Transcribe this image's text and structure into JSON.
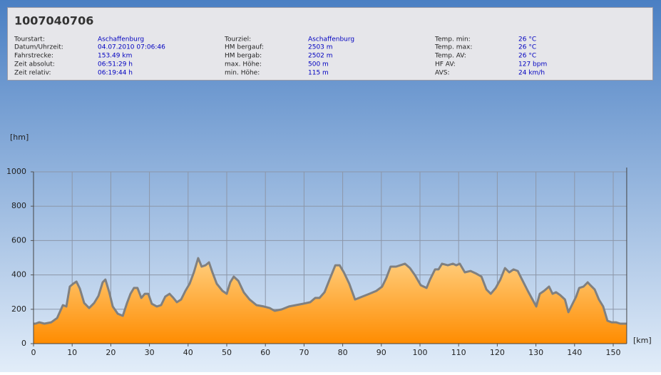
{
  "header": {
    "title": "1007040706",
    "fields": [
      [
        {
          "label": "Tourstart:",
          "value": "Aschaffenburg"
        },
        {
          "label": "Datum/Uhrzeit:",
          "value": "04.07.2010 07:06:46"
        },
        {
          "label": "Fahrstrecke:",
          "value": "153.49 km"
        },
        {
          "label": "Zeit absolut:",
          "value": "06:51:29 h"
        },
        {
          "label": "Zeit relativ:",
          "value": "06:19:44 h"
        }
      ],
      [
        {
          "label": "Tourziel:",
          "value": "Aschaffenburg"
        },
        {
          "label": "HM bergauf:",
          "value": "2503 m"
        },
        {
          "label": "HM bergab:",
          "value": "2502 m"
        },
        {
          "label": "max. Höhe:",
          "value": "500 m"
        },
        {
          "label": "min. Höhe:",
          "value": "115 m"
        }
      ],
      [
        {
          "label": "Temp. min:",
          "value": "26 °C"
        },
        {
          "label": "Temp. max:",
          "value": "26 °C"
        },
        {
          "label": "Temp. AV:",
          "value": "26 °C"
        },
        {
          "label": "HF AV:",
          "value": "127 bpm"
        },
        {
          "label": "AVS:",
          "value": "24 km/h"
        }
      ]
    ]
  },
  "chart_data": {
    "type": "area",
    "y_label": "[hm]",
    "x_label": "[km]",
    "color": "#ff9a10",
    "line_color": "#808080",
    "grid": true,
    "xlim": [
      0,
      153.49
    ],
    "ylim": [
      0,
      1000
    ],
    "xticks": [
      0,
      10,
      20,
      30,
      40,
      50,
      60,
      70,
      80,
      90,
      100,
      110,
      120,
      130,
      140,
      150
    ],
    "yticks": [
      0,
      200,
      400,
      600,
      800,
      1000
    ],
    "x": [
      0,
      0.5,
      1.5,
      2.8,
      4.6,
      6.1,
      7.6,
      8.5,
      9.4,
      10.3,
      11.1,
      12.0,
      13.1,
      14.4,
      15.7,
      16.8,
      17.9,
      18.6,
      19.6,
      20.5,
      21.8,
      23.1,
      24.2,
      25.1,
      26.0,
      26.9,
      27.9,
      28.8,
      29.7,
      30.6,
      31.9,
      33.0,
      34.1,
      35.2,
      36.2,
      37.1,
      38.2,
      39.3,
      40.4,
      41.5,
      42.6,
      43.5,
      44.5,
      45.4,
      46.3,
      47.4,
      48.9,
      50.0,
      50.9,
      51.8,
      53.0,
      54.4,
      55.9,
      57.7,
      59.6,
      61.1,
      62.4,
      64.2,
      66.1,
      67.9,
      69.7,
      71.6,
      72.9,
      74.0,
      75.3,
      76.6,
      78.1,
      79.2,
      80.3,
      81.7,
      83.2,
      85.1,
      86.9,
      88.7,
      90.2,
      91.3,
      92.4,
      93.8,
      94.9,
      96.1,
      97.4,
      98.7,
      100.2,
      101.7,
      102.6,
      103.9,
      104.8,
      105.7,
      107.2,
      108.5,
      109.4,
      110.3,
      111.6,
      113.1,
      114.6,
      115.9,
      117.2,
      118.3,
      119.6,
      120.8,
      122.0,
      123.1,
      124.2,
      125.3,
      126.4,
      127.9,
      129.3,
      130.1,
      131.0,
      132.1,
      133.4,
      134.3,
      135.2,
      136.3,
      137.5,
      138.4,
      139.3,
      140.4,
      141.2,
      142.3,
      143.4,
      144.1,
      145.2,
      146.3,
      147.4,
      148.5,
      149.6,
      150.7,
      151.8,
      152.9,
      153.49
    ],
    "values": [
      116,
      116,
      124,
      116,
      124,
      149,
      224,
      216,
      332,
      349,
      361,
      320,
      237,
      207,
      237,
      278,
      357,
      373,
      299,
      216,
      174,
      162,
      237,
      290,
      324,
      324,
      266,
      290,
      290,
      232,
      216,
      224,
      274,
      290,
      266,
      241,
      257,
      307,
      349,
      415,
      498,
      448,
      456,
      473,
      415,
      349,
      307,
      290,
      357,
      390,
      365,
      299,
      257,
      224,
      216,
      207,
      191,
      199,
      216,
      224,
      232,
      241,
      266,
      266,
      299,
      373,
      456,
      456,
      415,
      349,
      257,
      274,
      290,
      307,
      332,
      382,
      448,
      448,
      456,
      465,
      440,
      398,
      340,
      324,
      373,
      432,
      432,
      465,
      456,
      465,
      456,
      465,
      415,
      423,
      407,
      390,
      315,
      290,
      324,
      373,
      440,
      415,
      432,
      423,
      373,
      307,
      249,
      216,
      290,
      307,
      332,
      290,
      299,
      282,
      257,
      183,
      224,
      274,
      324,
      332,
      357,
      340,
      315,
      257,
      216,
      133,
      124,
      124,
      116,
      116,
      116
    ]
  }
}
